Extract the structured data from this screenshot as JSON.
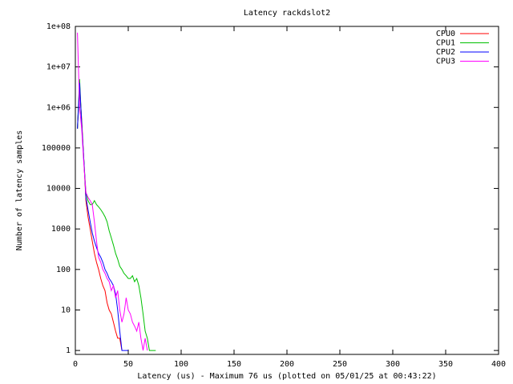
{
  "chart_data": {
    "type": "line",
    "title": "Latency rackdslot2",
    "xlabel": "Latency (us) - Maximum 76 us (plotted on 05/01/25 at 00:43:22)",
    "ylabel": "Number of latency samples",
    "log_y": true,
    "legend": "upper right",
    "xlim": [
      0,
      400
    ],
    "xticks": [
      0,
      50,
      100,
      150,
      200,
      250,
      300,
      350,
      400
    ],
    "ylim": [
      0.8,
      100000000
    ],
    "yticks": [
      1,
      10,
      100,
      1000,
      10000,
      100000,
      {
        "value": 1000000,
        "label": "1e+06"
      },
      {
        "value": 10000000,
        "label": "1e+07"
      },
      {
        "value": 100000000,
        "label": "1e+08"
      }
    ],
    "x": [
      0,
      2,
      4,
      6,
      8,
      10,
      12,
      14,
      16,
      18,
      20,
      22,
      24,
      26,
      28,
      30,
      32,
      34,
      36,
      38,
      40,
      42,
      44,
      46,
      48,
      50,
      52,
      54,
      56,
      58,
      60,
      62,
      64,
      66,
      68,
      70,
      72,
      74,
      76
    ],
    "series": [
      {
        "name": "CPU0",
        "color": "#ff0000",
        "values": [
          null,
          300000,
          3000000,
          500000,
          50000,
          5000,
          2000,
          1000,
          500,
          250,
          150,
          100,
          60,
          40,
          30,
          15,
          10,
          8,
          5,
          3,
          2,
          2,
          1,
          null,
          null,
          null,
          null,
          null,
          null,
          null,
          null,
          null,
          null,
          null,
          null,
          null,
          null,
          null,
          null
        ]
      },
      {
        "name": "CPU1",
        "color": "#00c000",
        "values": [
          null,
          300000,
          5000000,
          400000,
          50000,
          8000,
          5000,
          4000,
          4000,
          5000,
          4000,
          3500,
          3000,
          2500,
          2000,
          1500,
          900,
          600,
          400,
          250,
          180,
          120,
          100,
          80,
          70,
          60,
          60,
          70,
          50,
          60,
          40,
          20,
          8,
          3,
          2,
          1,
          1,
          1,
          1
        ]
      },
      {
        "name": "CPU2",
        "color": "#0000ff",
        "values": [
          null,
          300000,
          4000000,
          400000,
          50000,
          6000,
          3000,
          1500,
          800,
          500,
          350,
          250,
          200,
          150,
          100,
          80,
          60,
          50,
          40,
          25,
          10,
          3,
          1,
          1,
          1,
          1,
          null,
          null,
          null,
          null,
          null,
          null,
          null,
          null,
          null,
          null,
          null,
          null,
          null
        ]
      },
      {
        "name": "CPU3",
        "color": "#ff00ff",
        "values": [
          null,
          70000000,
          1000000,
          300000,
          40000,
          8000,
          6000,
          5000,
          4000,
          1500,
          500,
          200,
          150,
          100,
          80,
          60,
          50,
          30,
          40,
          20,
          30,
          10,
          5,
          8,
          20,
          10,
          8,
          5,
          4,
          3,
          5,
          2,
          1,
          2,
          1,
          null,
          null,
          null,
          null
        ]
      }
    ]
  }
}
